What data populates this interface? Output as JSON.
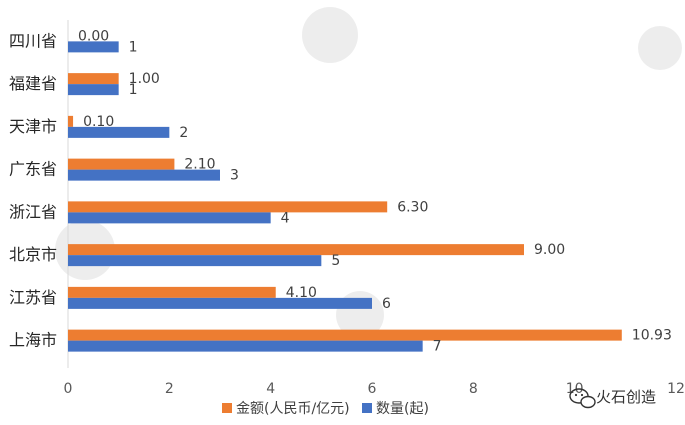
{
  "chart_data": {
    "type": "bar",
    "orientation": "horizontal",
    "categories": [
      "四川省",
      "福建省",
      "天津市",
      "广东省",
      "浙江省",
      "北京市",
      "江苏省",
      "上海市"
    ],
    "series": [
      {
        "name": "金额(人民币/亿元)",
        "color": "#ED7D31",
        "values": [
          0.0,
          1.0,
          0.1,
          2.1,
          6.3,
          9.0,
          4.1,
          10.93
        ],
        "labels": [
          "0.00",
          "1.00",
          "0.10",
          "2.10",
          "6.30",
          "9.00",
          "4.10",
          "10.93"
        ]
      },
      {
        "name": "数量(起)",
        "color": "#4472C4",
        "values": [
          1,
          1,
          2,
          3,
          4,
          5,
          6,
          7
        ],
        "labels": [
          "1",
          "1",
          "2",
          "3",
          "4",
          "5",
          "6",
          "7"
        ]
      }
    ],
    "xlim": [
      0,
      12
    ],
    "xticks": [
      "0",
      "2",
      "4",
      "6",
      "8",
      "10",
      "12"
    ],
    "grid": false,
    "legend_position": "bottom"
  },
  "watermark": {
    "text": "火石创造",
    "icon": "wechat-icon"
  }
}
